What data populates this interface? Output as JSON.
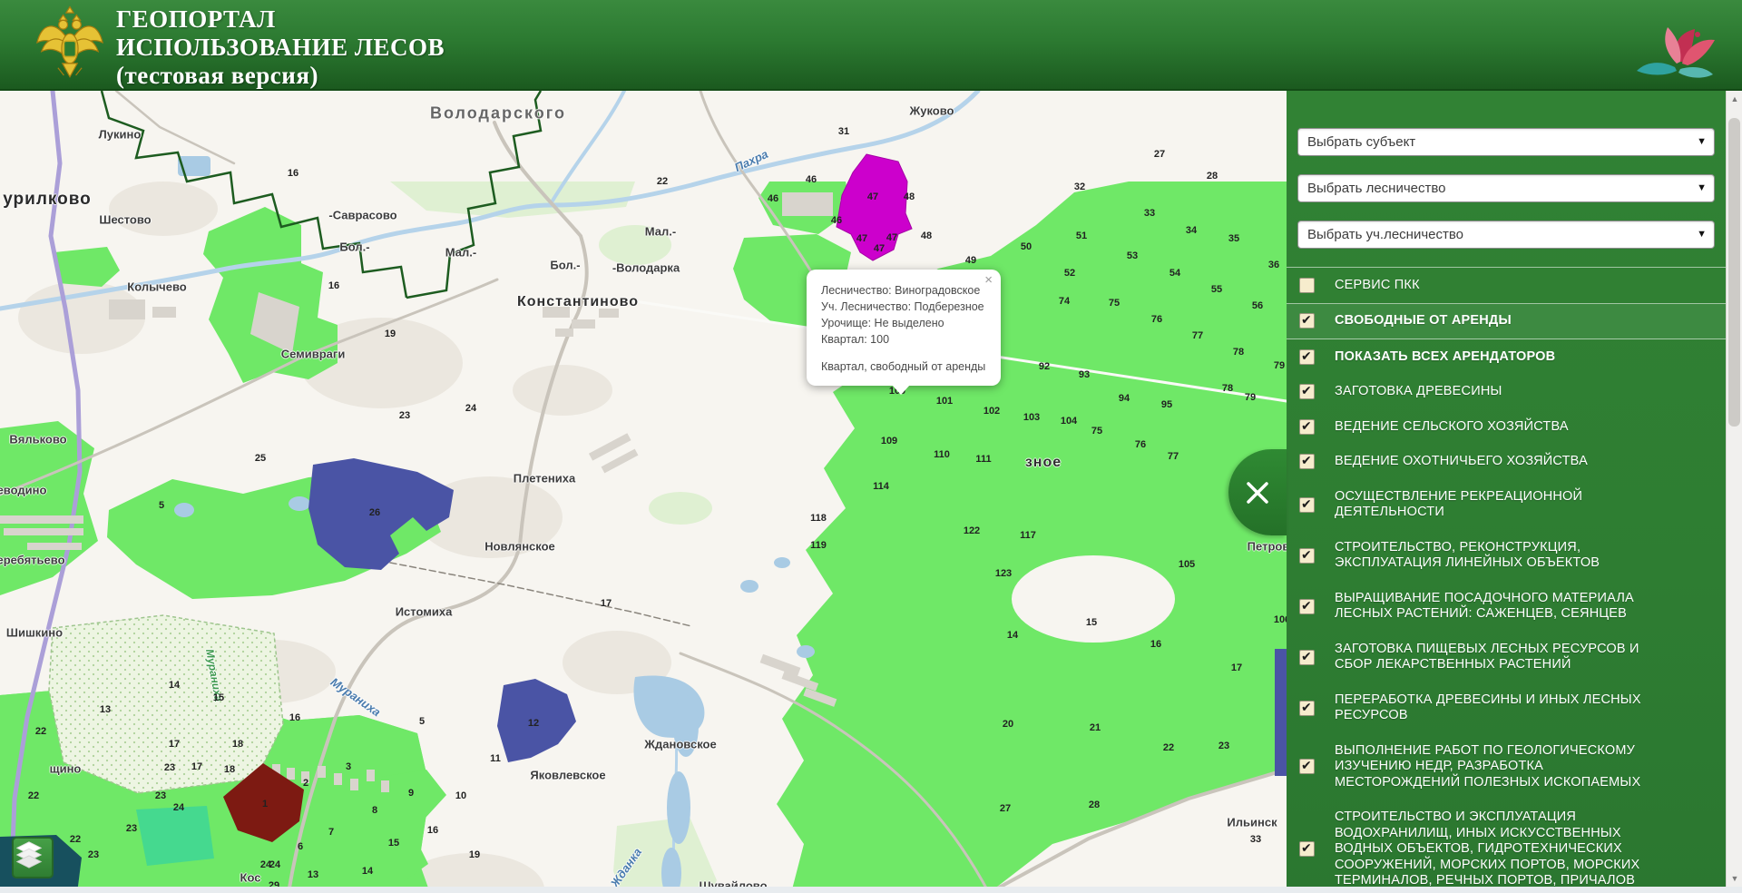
{
  "header": {
    "title_line1": "ГЕОПОРТАЛ",
    "title_line2": "ИСПОЛЬЗОВАНИЕ ЛЕСОВ",
    "title_line3": "(тестовая версия)",
    "left_logo": "rosleshoz-double-eagle-emblem",
    "right_logo": "flower-logo"
  },
  "sidebar": {
    "caret_symbol": "▼",
    "close_symbol": "×",
    "scroll_up_symbol": "▲",
    "scroll_down_symbol": "▼",
    "selects": [
      {
        "label": "Выбрать субъект"
      },
      {
        "label": "Выбрать лесничество"
      },
      {
        "label": "Выбрать уч.лесничество"
      }
    ],
    "layers": [
      {
        "label": "СЕРВИС ПКК",
        "checked": false,
        "bold": false,
        "highlight": false,
        "sep_top": true,
        "sep_bot": true
      },
      {
        "label": "СВОБОДНЫЕ ОТ АРЕНДЫ",
        "checked": true,
        "bold": true,
        "highlight": true,
        "sep_top": false,
        "sep_bot": true
      },
      {
        "label": "ПОКАЗАТЬ ВСЕХ АРЕНДАТОРОВ",
        "checked": true,
        "bold": true,
        "highlight": false,
        "sep_top": false,
        "sep_bot": false
      },
      {
        "label": "ЗАГОТОВКА ДРЕВЕСИНЫ",
        "checked": true,
        "bold": false,
        "highlight": false,
        "sep_top": false,
        "sep_bot": false
      },
      {
        "label": "ВЕДЕНИЕ СЕЛЬСКОГО ХОЗЯЙСТВА",
        "checked": true,
        "bold": false,
        "highlight": false,
        "sep_top": false,
        "sep_bot": false
      },
      {
        "label": "ВЕДЕНИЕ ОХОТНИЧЬЕГО ХОЗЯЙСТВА",
        "checked": true,
        "bold": false,
        "highlight": false,
        "sep_top": false,
        "sep_bot": false
      },
      {
        "label": "ОСУЩЕСТВЛЕНИЕ РЕКРЕАЦИОННОЙ ДЕЯТЕЛЬНОСТИ",
        "checked": true,
        "bold": false,
        "highlight": false,
        "sep_top": false,
        "sep_bot": false
      },
      {
        "label": "СТРОИТЕЛЬСТВО, РЕКОНСТРУКЦИЯ, ЭКСПЛУАТАЦИЯ ЛИНЕЙНЫХ ОБЪЕКТОВ",
        "checked": true,
        "bold": false,
        "highlight": false,
        "sep_top": false,
        "sep_bot": false
      },
      {
        "label": "ВЫРАЩИВАНИЕ ПОСАДОЧНОГО МАТЕРИАЛА ЛЕСНЫХ РАСТЕНИЙ: САЖЕНЦЕВ, СЕЯНЦЕВ",
        "checked": true,
        "bold": false,
        "highlight": false,
        "sep_top": false,
        "sep_bot": false
      },
      {
        "label": "ЗАГОТОВКА ПИЩЕВЫХ ЛЕСНЫХ РЕСУРСОВ И СБОР ЛЕКАРСТВЕННЫХ РАСТЕНИЙ",
        "checked": true,
        "bold": false,
        "highlight": false,
        "sep_top": false,
        "sep_bot": false
      },
      {
        "label": "ПЕРЕРАБОТКА ДРЕВЕСИНЫ И ИНЫХ ЛЕСНЫХ РЕСУРСОВ",
        "checked": true,
        "bold": false,
        "highlight": false,
        "sep_top": false,
        "sep_bot": false
      },
      {
        "label": "ВЫПОЛНЕНИЕ РАБОТ ПО ГЕОЛОГИЧЕСКОМУ ИЗУЧЕНИЮ НЕДР, РАЗРАБОТКА МЕСТОРОЖДЕНИЙ ПОЛЕЗНЫХ ИСКОПАЕМЫХ",
        "checked": true,
        "bold": false,
        "highlight": false,
        "sep_top": false,
        "sep_bot": false
      },
      {
        "label": "СТРОИТЕЛЬСТВО И ЭКСПЛУАТАЦИЯ ВОДОХРАНИЛИЩ, ИНЫХ ИСКУССТВЕННЫХ ВОДНЫХ ОБЪЕКТОВ, ГИДРОТЕХНИЧЕСКИХ СООРУЖЕНИЙ, МОРСКИХ ПОРТОВ, МОРСКИХ ТЕРМИНАЛОВ, РЕЧНЫХ ПОРТОВ, ПРИЧАЛОВ",
        "checked": true,
        "bold": false,
        "highlight": false,
        "sep_top": false,
        "sep_bot": false
      }
    ]
  },
  "popup": {
    "lines": [
      "Лесничество: Виноградовское",
      "Уч. Лесничество: Подберезное",
      "Урочище: Не выделено",
      "Квартал: 100"
    ],
    "note": "Квартал, свободный от аренды",
    "close_symbol": "×"
  },
  "map": {
    "colors": {
      "header_green": "#2e7d32",
      "forest_green": "#6fe867",
      "teal_forest": "#45d98f",
      "free_quarter_magenta": "#cc00cc",
      "lease_blue": "#4a54a5",
      "lease_dark_red": "#7d1a12",
      "lease_teal": "#17505e",
      "river_blue": "#b5d3ea",
      "checkbox_cream": "#f6eccd"
    },
    "place_labels": [
      [
        "Володарского",
        549,
        25,
        "lbl-big",
        0
      ],
      [
        "Жуково",
        1027,
        22,
        "lbl-place",
        0
      ],
      [
        "Лукино",
        132,
        48,
        "lbl-place",
        0
      ],
      [
        "урилково",
        52,
        120,
        "lbl-huge",
        0
      ],
      [
        "Шестово",
        138,
        142,
        "lbl-place",
        0
      ],
      [
        "Колычево",
        173,
        216,
        "lbl-place",
        0
      ],
      [
        "-Саврасово",
        400,
        137,
        "lbl-place",
        0
      ],
      [
        "Бол.-",
        391,
        172,
        "lbl-place",
        0
      ],
      [
        "Мал.-",
        508,
        178,
        "lbl-place",
        0
      ],
      [
        "Бол.-",
        623,
        192,
        "lbl-place",
        0
      ],
      [
        "Мал.-",
        728,
        155,
        "lbl-place",
        0
      ],
      [
        "-Володарка",
        712,
        195,
        "lbl-place",
        0
      ],
      [
        "Константиново",
        637,
        233,
        "lbl-big2",
        0
      ],
      [
        "Семивраги",
        345,
        290,
        "lbl-place",
        0
      ],
      [
        "Вяльково",
        42,
        384,
        "lbl-place",
        0
      ],
      [
        "еводино",
        24,
        440,
        "lbl-place",
        0
      ],
      [
        "еребятьево",
        34,
        517,
        "lbl-place",
        0
      ],
      [
        "Шишкино",
        38,
        597,
        "lbl-place",
        0
      ],
      [
        "Плетениха",
        600,
        427,
        "lbl-place",
        0
      ],
      [
        "Новлянское",
        573,
        502,
        "lbl-place",
        0
      ],
      [
        "Истомиха",
        467,
        574,
        "lbl-place",
        0
      ],
      [
        "щино",
        72,
        747,
        "lbl-place",
        0
      ],
      [
        "Яковлевское",
        626,
        754,
        "lbl-place",
        0
      ],
      [
        "Ждановское",
        750,
        720,
        "lbl-place",
        0
      ],
      [
        "Шувайлово",
        808,
        876,
        "lbl-place",
        0
      ],
      [
        "Кос",
        276,
        867,
        "lbl-place",
        0
      ],
      [
        "Петров",
        1398,
        502,
        "lbl-place",
        0
      ],
      [
        "Ильинск",
        1380,
        806,
        "lbl-place",
        0
      ],
      [
        "зное",
        1150,
        410,
        "lbl-big2",
        0
      ],
      [
        "Пахра",
        828,
        77,
        "lbl-river",
        -25
      ],
      [
        "Жданка",
        690,
        856,
        "lbl-river",
        -55
      ],
      [
        "Мураниха",
        392,
        668,
        "lbl-river",
        35
      ],
      [
        "Мураниха",
        236,
        644,
        "lbl-river-g",
        80
      ]
    ],
    "quarter_numbers": [
      [
        "16",
        323,
        91
      ],
      [
        "16",
        368,
        215
      ],
      [
        "22",
        730,
        100
      ],
      [
        "31",
        930,
        45
      ],
      [
        "46",
        894,
        98
      ],
      [
        "46",
        852,
        119
      ],
      [
        "46",
        922,
        143
      ],
      [
        "47",
        962,
        117
      ],
      [
        "47",
        950,
        163
      ],
      [
        "47",
        983,
        162
      ],
      [
        "47",
        969,
        174
      ],
      [
        "48",
        1002,
        117
      ],
      [
        "48",
        1021,
        160
      ],
      [
        "49",
        1070,
        187
      ],
      [
        "50",
        1131,
        172
      ],
      [
        "27",
        1278,
        70
      ],
      [
        "28",
        1336,
        94
      ],
      [
        "32",
        1190,
        106
      ],
      [
        "33",
        1267,
        135
      ],
      [
        "34",
        1313,
        154
      ],
      [
        "35",
        1360,
        163
      ],
      [
        "36",
        1404,
        192
      ],
      [
        "51",
        1192,
        160
      ],
      [
        "52",
        1179,
        201
      ],
      [
        "53",
        1248,
        182
      ],
      [
        "54",
        1295,
        201
      ],
      [
        "55",
        1341,
        219
      ],
      [
        "56",
        1386,
        237
      ],
      [
        "74",
        1173,
        232
      ],
      [
        "75",
        1228,
        234
      ],
      [
        "76",
        1275,
        252
      ],
      [
        "77",
        1320,
        270
      ],
      [
        "78",
        1365,
        288
      ],
      [
        "79",
        1410,
        303
      ],
      [
        "75",
        1209,
        375
      ],
      [
        "76",
        1257,
        390
      ],
      [
        "77",
        1293,
        403
      ],
      [
        "78",
        1353,
        328
      ],
      [
        "79",
        1378,
        338
      ],
      [
        "92",
        1151,
        304
      ],
      [
        "93",
        1195,
        313
      ],
      [
        "94",
        1239,
        339
      ],
      [
        "95",
        1286,
        346
      ],
      [
        "100",
        989,
        331
      ],
      [
        "101",
        1041,
        342
      ],
      [
        "102",
        1093,
        353
      ],
      [
        "103",
        1137,
        360
      ],
      [
        "104",
        1178,
        364
      ],
      [
        "109",
        980,
        386
      ],
      [
        "110",
        1038,
        401
      ],
      [
        "111",
        1084,
        406
      ],
      [
        "114",
        971,
        436
      ],
      [
        "117",
        1133,
        490
      ],
      [
        "118",
        902,
        471
      ],
      [
        "119",
        902,
        501
      ],
      [
        "122",
        1071,
        485
      ],
      [
        "123",
        1106,
        532
      ],
      [
        "105",
        1308,
        522
      ],
      [
        "106",
        1413,
        583
      ],
      [
        "15",
        1203,
        586
      ],
      [
        "14",
        1116,
        600
      ],
      [
        "16",
        1274,
        610
      ],
      [
        "17",
        1363,
        636
      ],
      [
        "20",
        1111,
        698
      ],
      [
        "21",
        1207,
        702
      ],
      [
        "22",
        1288,
        724
      ],
      [
        "23",
        1349,
        722
      ],
      [
        "27",
        1108,
        791
      ],
      [
        "28",
        1206,
        787
      ],
      [
        "33",
        1384,
        825
      ],
      [
        "19",
        430,
        268
      ],
      [
        "23",
        446,
        358
      ],
      [
        "24",
        519,
        350
      ],
      [
        "25",
        287,
        405
      ],
      [
        "5",
        178,
        457
      ],
      [
        "26",
        413,
        465
      ],
      [
        "17",
        668,
        565
      ],
      [
        "5",
        465,
        695
      ],
      [
        "11",
        546,
        736
      ],
      [
        "12",
        588,
        697
      ],
      [
        "9",
        453,
        774
      ],
      [
        "10",
        508,
        777
      ],
      [
        "16",
        477,
        815
      ],
      [
        "15",
        434,
        829
      ],
      [
        "19",
        523,
        842
      ],
      [
        "14",
        192,
        655
      ],
      [
        "15",
        241,
        669
      ],
      [
        "13",
        116,
        682
      ],
      [
        "22",
        45,
        706
      ],
      [
        "16",
        325,
        691
      ],
      [
        "17",
        192,
        720
      ],
      [
        "18",
        262,
        720
      ],
      [
        "17",
        217,
        745
      ],
      [
        "18",
        253,
        748
      ],
      [
        "23",
        187,
        746
      ],
      [
        "3",
        384,
        745
      ],
      [
        "2",
        337,
        763
      ],
      [
        "1",
        292,
        786
      ],
      [
        "22",
        37,
        777
      ],
      [
        "23",
        177,
        777
      ],
      [
        "24",
        197,
        790
      ],
      [
        "23",
        145,
        813
      ],
      [
        "22",
        83,
        825
      ],
      [
        "8",
        413,
        793
      ],
      [
        "7",
        365,
        817
      ],
      [
        "6",
        331,
        833
      ],
      [
        "24",
        293,
        853
      ],
      [
        "24",
        303,
        853
      ],
      [
        "29",
        302,
        876
      ],
      [
        "13",
        345,
        864
      ],
      [
        "14",
        405,
        860
      ],
      [
        "23",
        103,
        842
      ]
    ]
  }
}
